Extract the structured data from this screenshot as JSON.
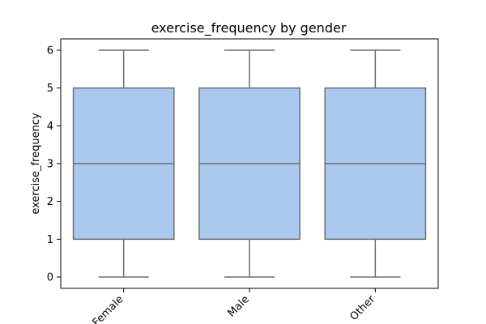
{
  "chart_data": {
    "type": "box",
    "title": "exercise_frequency by gender",
    "xlabel": "",
    "ylabel": "exercise_frequency",
    "categories": [
      "Female",
      "Male",
      "Other"
    ],
    "boxes": [
      {
        "category": "Female",
        "min": 0,
        "q1": 1,
        "median": 3,
        "q3": 5,
        "max": 6
      },
      {
        "category": "Male",
        "min": 0,
        "q1": 1,
        "median": 3,
        "q3": 5,
        "max": 6
      },
      {
        "category": "Other",
        "min": 0,
        "q1": 1,
        "median": 3,
        "q3": 5,
        "max": 6
      }
    ],
    "y_ticks": [
      0,
      1,
      2,
      3,
      4,
      5,
      6
    ],
    "ylim": [
      -0.3,
      6.3
    ],
    "grid": false,
    "colors": {
      "box_fill": "#abc9ee",
      "box_line": "#6e6e6e",
      "axis": "#000000"
    }
  }
}
